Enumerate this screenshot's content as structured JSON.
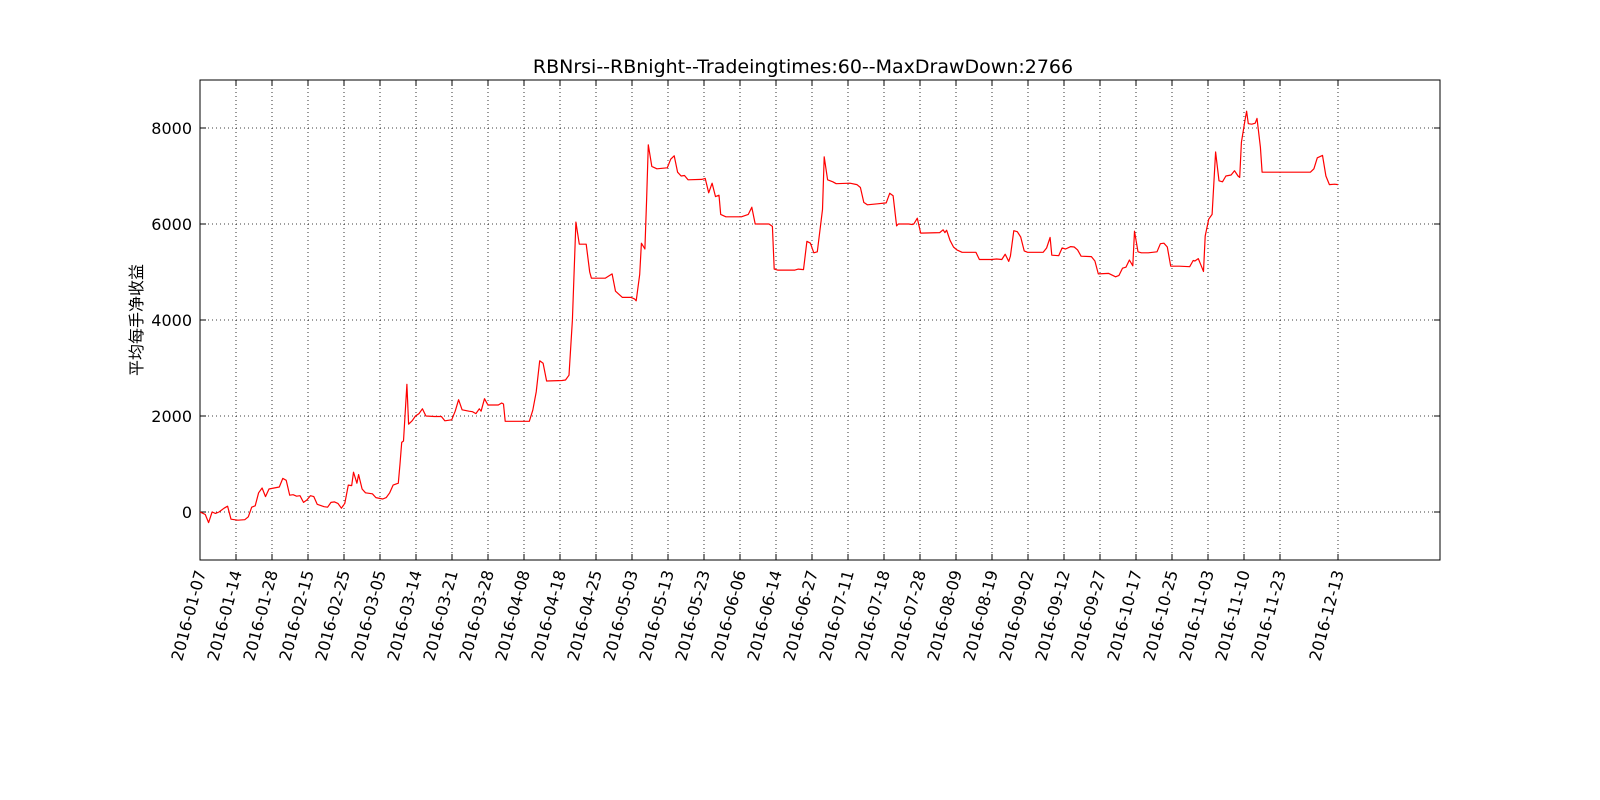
{
  "chart_data": {
    "type": "line",
    "title": "RBNrsi--RBnight--Tradeingtimes:60--MaxDrawDown:2766",
    "xlabel": "",
    "ylabel": "平均每手净收益",
    "x_tick_labels": [
      "2016-01-07",
      "2016-01-14",
      "2016-01-28",
      "2016-02-15",
      "2016-02-25",
      "2016-03-05",
      "2016-03-14",
      "2016-03-21",
      "2016-03-28",
      "2016-04-08",
      "2016-04-18",
      "2016-04-25",
      "2016-05-03",
      "2016-05-13",
      "2016-05-23",
      "2016-06-06",
      "2016-06-14",
      "2016-06-27",
      "2016-07-11",
      "2016-07-18",
      "2016-07-28",
      "2016-08-09",
      "2016-08-19",
      "2016-09-02",
      "2016-09-12",
      "2016-09-27",
      "2016-10-17",
      "2016-10-25",
      "2016-11-03",
      "2016-11-10",
      "2016-11-23",
      "2016-12-13"
    ],
    "y_ticks": [
      0,
      2000,
      4000,
      6000,
      8000
    ],
    "ylim": [
      -1000,
      9000
    ],
    "grid": true,
    "series": [
      {
        "color": "#ff0000",
        "points": [
          [
            0,
            0
          ],
          [
            3,
            -50
          ],
          [
            5,
            -220
          ],
          [
            7,
            0
          ],
          [
            9,
            -30
          ],
          [
            11,
            0
          ],
          [
            14,
            80
          ],
          [
            16,
            120
          ],
          [
            18,
            -150
          ],
          [
            22,
            -170
          ],
          [
            26,
            -160
          ],
          [
            28,
            -100
          ],
          [
            30,
            100
          ],
          [
            32,
            130
          ],
          [
            34,
            400
          ],
          [
            36,
            500
          ],
          [
            38,
            320
          ],
          [
            40,
            480
          ],
          [
            43,
            500
          ],
          [
            46,
            520
          ],
          [
            48,
            700
          ],
          [
            50,
            660
          ],
          [
            52,
            350
          ],
          [
            54,
            360
          ],
          [
            56,
            330
          ],
          [
            58,
            340
          ],
          [
            60,
            200
          ],
          [
            62,
            250
          ],
          [
            64,
            340
          ],
          [
            66,
            320
          ],
          [
            68,
            160
          ],
          [
            72,
            110
          ],
          [
            74,
            100
          ],
          [
            76,
            200
          ],
          [
            78,
            210
          ],
          [
            80,
            180
          ],
          [
            82,
            80
          ],
          [
            84,
            180
          ],
          [
            86,
            560
          ],
          [
            88,
            550
          ],
          [
            89,
            830
          ],
          [
            91,
            600
          ],
          [
            92,
            780
          ],
          [
            94,
            480
          ],
          [
            96,
            400
          ],
          [
            100,
            380
          ],
          [
            102,
            300
          ],
          [
            106,
            270
          ],
          [
            108,
            300
          ],
          [
            110,
            400
          ],
          [
            112,
            560
          ],
          [
            115,
            600
          ],
          [
            116,
            1000
          ],
          [
            117,
            1450
          ],
          [
            118,
            1480
          ],
          [
            120,
            2660
          ],
          [
            121,
            1830
          ],
          [
            123,
            1900
          ],
          [
            125,
            2000
          ],
          [
            127,
            2050
          ],
          [
            129,
            2150
          ],
          [
            131,
            2000
          ],
          [
            136,
            1990
          ],
          [
            140,
            1990
          ],
          [
            142,
            1900
          ],
          [
            146,
            1920
          ],
          [
            148,
            2100
          ],
          [
            150,
            2340
          ],
          [
            152,
            2130
          ],
          [
            156,
            2100
          ],
          [
            158,
            2090
          ],
          [
            160,
            2050
          ],
          [
            162,
            2150
          ],
          [
            163,
            2100
          ],
          [
            165,
            2360
          ],
          [
            167,
            2230
          ],
          [
            173,
            2230
          ],
          [
            175,
            2270
          ],
          [
            176,
            2250
          ],
          [
            177,
            1890
          ],
          [
            189,
            1890
          ],
          [
            191,
            1890
          ],
          [
            193,
            2120
          ],
          [
            195,
            2500
          ],
          [
            197,
            3150
          ],
          [
            199,
            3100
          ],
          [
            201,
            2730
          ],
          [
            210,
            2740
          ],
          [
            212,
            2750
          ],
          [
            214,
            2850
          ],
          [
            216,
            4000
          ],
          [
            218,
            6040
          ],
          [
            220,
            5580
          ],
          [
            224,
            5580
          ],
          [
            226,
            5000
          ],
          [
            227,
            4870
          ],
          [
            235,
            4870
          ],
          [
            239,
            4960
          ],
          [
            241,
            4600
          ],
          [
            245,
            4470
          ],
          [
            250,
            4470
          ],
          [
            252,
            4440
          ],
          [
            253,
            4400
          ],
          [
            255,
            4950
          ],
          [
            256,
            5600
          ],
          [
            258,
            5480
          ],
          [
            259,
            6500
          ],
          [
            260,
            7650
          ],
          [
            262,
            7200
          ],
          [
            265,
            7150
          ],
          [
            271,
            7170
          ],
          [
            273,
            7350
          ],
          [
            275,
            7420
          ],
          [
            277,
            7080
          ],
          [
            279,
            7000
          ],
          [
            281,
            7010
          ],
          [
            283,
            6920
          ],
          [
            291,
            6930
          ],
          [
            293,
            6950
          ],
          [
            295,
            6650
          ],
          [
            297,
            6850
          ],
          [
            299,
            6570
          ],
          [
            301,
            6600
          ],
          [
            302,
            6200
          ],
          [
            305,
            6150
          ],
          [
            314,
            6150
          ],
          [
            318,
            6200
          ],
          [
            320,
            6350
          ],
          [
            322,
            6000
          ],
          [
            330,
            6000
          ],
          [
            332,
            5950
          ],
          [
            333,
            5060
          ],
          [
            335,
            5040
          ],
          [
            345,
            5040
          ],
          [
            347,
            5060
          ],
          [
            350,
            5050
          ],
          [
            352,
            5640
          ],
          [
            354,
            5600
          ],
          [
            356,
            5400
          ],
          [
            358,
            5420
          ],
          [
            361,
            6300
          ],
          [
            362,
            7400
          ],
          [
            364,
            6920
          ],
          [
            367,
            6880
          ],
          [
            369,
            6840
          ],
          [
            377,
            6850
          ],
          [
            381,
            6820
          ],
          [
            383,
            6760
          ],
          [
            385,
            6450
          ],
          [
            387,
            6400
          ],
          [
            393,
            6420
          ],
          [
            398,
            6440
          ],
          [
            400,
            6640
          ],
          [
            402,
            6590
          ],
          [
            404,
            5960
          ],
          [
            405,
            6000
          ],
          [
            411,
            6000
          ],
          [
            413,
            5990
          ],
          [
            414,
            6000
          ],
          [
            416,
            6120
          ],
          [
            418,
            5810
          ],
          [
            429,
            5820
          ],
          [
            431,
            5880
          ],
          [
            432,
            5820
          ],
          [
            433,
            5870
          ],
          [
            435,
            5660
          ],
          [
            437,
            5520
          ],
          [
            439,
            5460
          ],
          [
            442,
            5410
          ],
          [
            450,
            5410
          ],
          [
            452,
            5260
          ],
          [
            459,
            5260
          ],
          [
            462,
            5270
          ],
          [
            465,
            5260
          ],
          [
            467,
            5370
          ],
          [
            469,
            5220
          ],
          [
            470,
            5330
          ],
          [
            472,
            5860
          ],
          [
            474,
            5840
          ],
          [
            476,
            5730
          ],
          [
            478,
            5440
          ],
          [
            480,
            5410
          ],
          [
            489,
            5410
          ],
          [
            491,
            5500
          ],
          [
            493,
            5720
          ],
          [
            494,
            5350
          ],
          [
            498,
            5340
          ],
          [
            500,
            5500
          ],
          [
            502,
            5480
          ],
          [
            505,
            5530
          ],
          [
            507,
            5520
          ],
          [
            509,
            5460
          ],
          [
            511,
            5330
          ],
          [
            517,
            5320
          ],
          [
            519,
            5230
          ],
          [
            521,
            4960
          ],
          [
            527,
            4970
          ],
          [
            531,
            4900
          ],
          [
            533,
            4930
          ],
          [
            535,
            5080
          ],
          [
            537,
            5100
          ],
          [
            539,
            5250
          ],
          [
            541,
            5130
          ],
          [
            542,
            5850
          ],
          [
            544,
            5420
          ],
          [
            546,
            5400
          ],
          [
            550,
            5400
          ],
          [
            555,
            5420
          ],
          [
            557,
            5590
          ],
          [
            559,
            5600
          ],
          [
            561,
            5520
          ],
          [
            563,
            5120
          ],
          [
            565,
            5120
          ],
          [
            568,
            5120
          ],
          [
            574,
            5110
          ],
          [
            576,
            5240
          ],
          [
            577,
            5230
          ],
          [
            579,
            5280
          ],
          [
            581,
            5100
          ],
          [
            582,
            5010
          ],
          [
            583,
            5750
          ],
          [
            585,
            6100
          ],
          [
            587,
            6200
          ],
          [
            589,
            7500
          ],
          [
            591,
            6900
          ],
          [
            593,
            6880
          ],
          [
            595,
            7000
          ],
          [
            598,
            7020
          ],
          [
            600,
            7110
          ],
          [
            602,
            7000
          ],
          [
            603,
            6970
          ],
          [
            604,
            7700
          ],
          [
            606,
            8150
          ],
          [
            607,
            8350
          ],
          [
            608,
            8090
          ],
          [
            610,
            8080
          ],
          [
            612,
            8100
          ],
          [
            613,
            8200
          ],
          [
            615,
            7600
          ],
          [
            616,
            7080
          ],
          [
            622,
            7080
          ],
          [
            637,
            7080
          ],
          [
            641,
            7080
          ],
          [
            644,
            7080
          ],
          [
            646,
            7150
          ],
          [
            648,
            7380
          ],
          [
            651,
            7430
          ],
          [
            653,
            7000
          ],
          [
            655,
            6820
          ],
          [
            658,
            6830
          ],
          [
            660,
            6820
          ]
        ]
      }
    ]
  }
}
